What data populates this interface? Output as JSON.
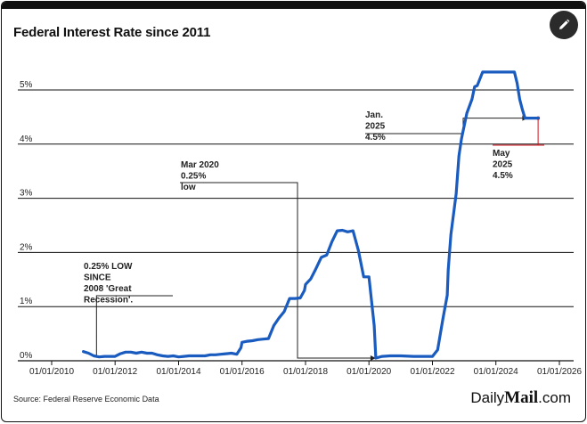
{
  "header": {
    "title": "Federal Interest Rate since 2011"
  },
  "footer": {
    "source": "Source: Federal Reserve Economic Data",
    "brand_prefix": "Daily",
    "brand_main": "Mail",
    "brand_suffix": ".com"
  },
  "toolbar": {
    "edit_icon": "pencil-icon"
  },
  "colors": {
    "line": "#1a5bbf",
    "highlight": "#d0101a",
    "text": "#222222",
    "grid": "#111111"
  },
  "chart_data": {
    "type": "line",
    "title": "Federal Interest Rate since 2011",
    "xlabel": "",
    "ylabel": "",
    "xlim": [
      "2010-01-01",
      "2026-01-01"
    ],
    "ylim": [
      0,
      5
    ],
    "x_ticks": [
      "01/01/2010",
      "01/01/2012",
      "01/01/2014",
      "01/01/2016",
      "01/01/2018",
      "01/01/2020",
      "01/01/2022",
      "01/01/2024",
      "01/01/2026"
    ],
    "y_ticks": [
      "0%",
      "1%",
      "2%",
      "3%",
      "4%",
      "5%"
    ],
    "grid": true,
    "series": [
      {
        "points": [
          [
            "2011-01-01",
            0.17
          ],
          [
            "2011-03-01",
            0.14
          ],
          [
            "2011-05-01",
            0.09
          ],
          [
            "2011-07-01",
            0.07
          ],
          [
            "2011-09-01",
            0.08
          ],
          [
            "2011-11-01",
            0.08
          ],
          [
            "2012-01-01",
            0.08
          ],
          [
            "2012-03-01",
            0.13
          ],
          [
            "2012-05-01",
            0.16
          ],
          [
            "2012-07-01",
            0.16
          ],
          [
            "2012-09-01",
            0.14
          ],
          [
            "2012-11-01",
            0.16
          ],
          [
            "2013-01-01",
            0.14
          ],
          [
            "2013-03-01",
            0.14
          ],
          [
            "2013-05-01",
            0.11
          ],
          [
            "2013-07-01",
            0.09
          ],
          [
            "2013-09-01",
            0.08
          ],
          [
            "2013-11-01",
            0.09
          ],
          [
            "2014-01-01",
            0.07
          ],
          [
            "2014-03-01",
            0.08
          ],
          [
            "2014-05-01",
            0.09
          ],
          [
            "2014-07-01",
            0.09
          ],
          [
            "2014-09-01",
            0.09
          ],
          [
            "2014-11-01",
            0.09
          ],
          [
            "2015-01-01",
            0.11
          ],
          [
            "2015-03-01",
            0.11
          ],
          [
            "2015-05-01",
            0.12
          ],
          [
            "2015-07-01",
            0.13
          ],
          [
            "2015-09-01",
            0.14
          ],
          [
            "2015-11-01",
            0.12
          ],
          [
            "2015-12-20",
            0.24
          ],
          [
            "2016-01-01",
            0.34
          ],
          [
            "2016-03-01",
            0.36
          ],
          [
            "2016-05-01",
            0.37
          ],
          [
            "2016-07-01",
            0.39
          ],
          [
            "2016-09-01",
            0.4
          ],
          [
            "2016-11-01",
            0.41
          ],
          [
            "2017-01-01",
            0.65
          ],
          [
            "2017-03-01",
            0.79
          ],
          [
            "2017-05-01",
            0.91
          ],
          [
            "2017-07-01",
            1.15
          ],
          [
            "2017-09-01",
            1.15
          ],
          [
            "2017-11-01",
            1.16
          ],
          [
            "2017-12-20",
            1.3
          ],
          [
            "2018-01-01",
            1.41
          ],
          [
            "2018-03-01",
            1.51
          ],
          [
            "2018-05-01",
            1.7
          ],
          [
            "2018-07-01",
            1.91
          ],
          [
            "2018-09-01",
            1.95
          ],
          [
            "2018-11-01",
            2.2
          ],
          [
            "2019-01-01",
            2.4
          ],
          [
            "2019-03-01",
            2.41
          ],
          [
            "2019-05-01",
            2.38
          ],
          [
            "2019-07-01",
            2.4
          ],
          [
            "2019-09-01",
            2.04
          ],
          [
            "2019-11-01",
            1.55
          ],
          [
            "2019-12-01",
            1.55
          ],
          [
            "2020-01-01",
            1.55
          ],
          [
            "2020-03-01",
            0.65
          ],
          [
            "2020-03-20",
            0.05
          ],
          [
            "2020-06-01",
            0.08
          ],
          [
            "2020-09-01",
            0.09
          ],
          [
            "2021-01-01",
            0.09
          ],
          [
            "2021-06-01",
            0.08
          ],
          [
            "2021-09-01",
            0.08
          ],
          [
            "2022-01-01",
            0.08
          ],
          [
            "2022-03-01",
            0.2
          ],
          [
            "2022-05-01",
            0.77
          ],
          [
            "2022-06-20",
            1.21
          ],
          [
            "2022-07-01",
            1.68
          ],
          [
            "2022-08-01",
            2.33
          ],
          [
            "2022-10-01",
            3.08
          ],
          [
            "2022-11-01",
            3.78
          ],
          [
            "2022-12-01",
            4.1
          ],
          [
            "2023-02-01",
            4.57
          ],
          [
            "2023-04-01",
            4.83
          ],
          [
            "2023-05-01",
            5.06
          ],
          [
            "2023-06-01",
            5.08
          ],
          [
            "2023-08-01",
            5.33
          ],
          [
            "2023-12-01",
            5.33
          ],
          [
            "2024-06-01",
            5.33
          ],
          [
            "2024-08-01",
            5.33
          ],
          [
            "2024-09-01",
            5.13
          ],
          [
            "2024-10-01",
            4.83
          ],
          [
            "2024-11-01",
            4.64
          ],
          [
            "2024-12-01",
            4.48
          ],
          [
            "2025-01-01",
            4.48
          ],
          [
            "2025-05-01",
            4.48
          ]
        ]
      }
    ],
    "annotations": [
      {
        "label": [
          "0.25% LOW",
          "SINCE",
          "2008 'Great",
          "Recession'."
        ],
        "x": "2011-06-01",
        "y": 0.08,
        "color": "#222222"
      },
      {
        "label": [
          "Mar 2020",
          "0.25%",
          "low"
        ],
        "x": "2020-03-20",
        "y": 0.05,
        "color": "#222222"
      },
      {
        "label": [
          "Jan.",
          "2025",
          "4.5%"
        ],
        "x": "2025-01-01",
        "y": 4.48,
        "color": "#222222"
      },
      {
        "label": [
          "May",
          "2025",
          "4.5%"
        ],
        "x": "2025-05-01",
        "y": 4.48,
        "color": "#d0101a"
      }
    ]
  }
}
